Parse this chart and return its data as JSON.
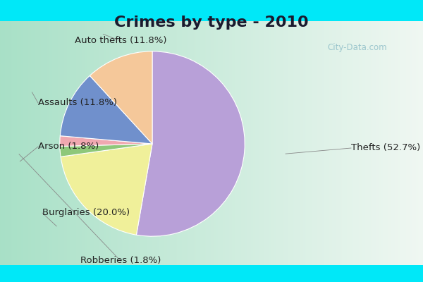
{
  "title": "Crimes by type - 2010",
  "labels": [
    "Thefts",
    "Burglaries",
    "Robberies",
    "Arson",
    "Assaults",
    "Auto thefts"
  ],
  "percentages": [
    52.7,
    20.0,
    1.8,
    1.8,
    11.8,
    11.8
  ],
  "colors": [
    "#b8a0d8",
    "#f0f09a",
    "#8ec87a",
    "#f0a8b0",
    "#7090cc",
    "#f5c89a"
  ],
  "label_texts": [
    "Thefts (52.7%)",
    "Burglaries (20.0%)",
    "Robberies (1.8%)",
    "Arson (1.8%)",
    "Assaults (11.8%)",
    "Auto thefts (11.8%)"
  ],
  "title_fontsize": 16,
  "label_fontsize": 9.5,
  "title_color": "#1a1a2e",
  "label_color": "#222222",
  "cyan_color": "#00e8f8",
  "bg_gradient_left": "#a8dfc8",
  "bg_gradient_right": "#e8f4f0",
  "watermark_color": "#90bfc8"
}
